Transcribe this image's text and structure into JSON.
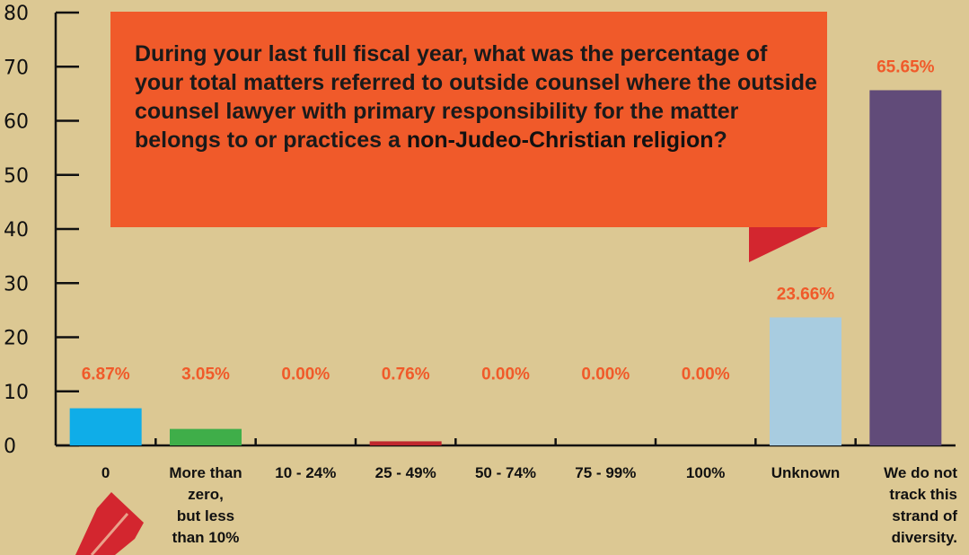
{
  "question": {
    "text_before": "During your last full fiscal year, what was the percentage of your total matters referred to outside counsel where the outside counsel lawyer with primary responsibility for the matter belongs to or practices a ",
    "highlight": "non-Judeo-Christian religion",
    "text_after": "?"
  },
  "colors": {
    "background": "#dcc893",
    "callout": "#f05a2a",
    "callout_tail": "#d3262f",
    "label_accent": "#f05a2a"
  },
  "chart_data": {
    "type": "bar",
    "title": "",
    "xlabel": "",
    "ylabel": "",
    "ylim": [
      0,
      80
    ],
    "yticks": [
      0,
      10,
      20,
      30,
      40,
      50,
      60,
      70,
      80
    ],
    "grid": false,
    "categories": [
      [
        "0"
      ],
      [
        "More than",
        "zero,",
        "but less",
        "than 10%"
      ],
      [
        "10 - 24%"
      ],
      [
        "25 - 49%"
      ],
      [
        "50 - 74%"
      ],
      [
        "75 - 99%"
      ],
      [
        "100%"
      ],
      [
        "Unknown"
      ],
      [
        "We do not",
        "track this",
        "strand of",
        "diversity."
      ]
    ],
    "values": [
      6.87,
      3.05,
      0.0,
      0.76,
      0.0,
      0.0,
      0.0,
      23.66,
      65.65
    ],
    "value_labels": [
      "6.87%",
      "3.05%",
      "0.00%",
      "0.76%",
      "0.00%",
      "0.00%",
      "0.00%",
      "23.66%",
      "65.65%"
    ],
    "bar_colors": [
      "#0fade8",
      "#3fae49",
      "#3fae49",
      "#c0272d",
      "#c0272d",
      "#c0272d",
      "#c0272d",
      "#a8cce0",
      "#614b79"
    ]
  }
}
